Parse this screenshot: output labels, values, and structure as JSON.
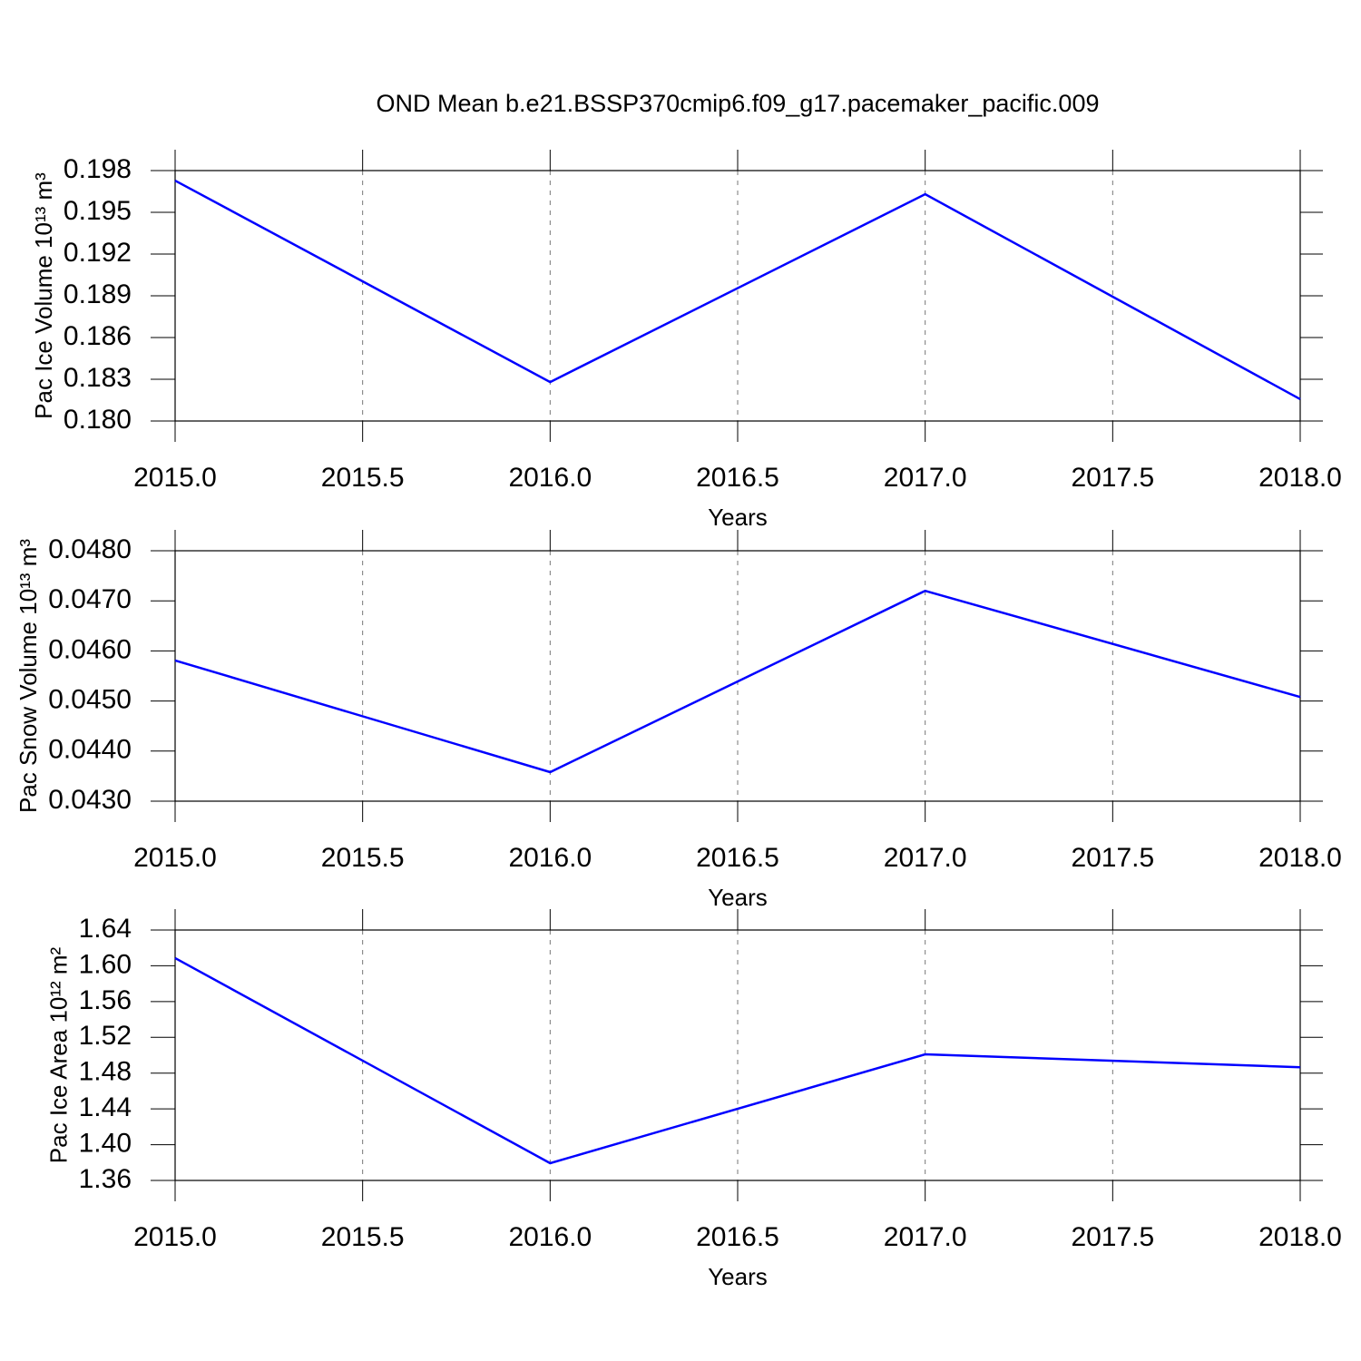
{
  "chart_data": [
    {
      "type": "line",
      "title": "OND Mean b.e21.BSSP370cmip6.f09_g17.pacemaker_pacific.009",
      "x_label": "Years",
      "y_label": "Pac Ice Volume 10¹³ m³",
      "x": [
        2015,
        2016,
        2017,
        2018
      ],
      "series": [
        {
          "color": "#0000ff",
          "values": [
            0.19728,
            0.1828,
            0.1963,
            0.18157
          ]
        }
      ],
      "xlim": [
        2015,
        2018
      ],
      "xticks": [
        {
          "value": 2015,
          "label": "2015.0"
        },
        2015.5,
        {
          "value": 2016,
          "label": "2016.0"
        },
        2016.5,
        {
          "value": 2017,
          "label": "2017.0"
        },
        2017.5,
        {
          "value": 2018,
          "label": "2018.0"
        }
      ],
      "ylim": [
        0.18,
        0.198
      ],
      "yticks": [
        {
          "value": 0.18,
          "label": "0.180"
        },
        0.183,
        0.186,
        0.189,
        0.192,
        0.195,
        0.198
      ],
      "grid": "x"
    },
    {
      "type": "line",
      "x_label": "Years",
      "y_label": "Pac Snow Volume 10¹³ m³",
      "x": [
        2015,
        2016,
        2017,
        2018
      ],
      "series": [
        {
          "color": "#0000ff",
          "values": [
            0.04581,
            0.04358,
            0.0472,
            0.04508
          ]
        }
      ],
      "xlim": [
        2015,
        2018
      ],
      "xticks": [
        {
          "value": 2015,
          "label": "2015.0"
        },
        2015.5,
        {
          "value": 2016,
          "label": "2016.0"
        },
        2016.5,
        {
          "value": 2017,
          "label": "2017.0"
        },
        2017.5,
        {
          "value": 2018,
          "label": "2018.0"
        }
      ],
      "ylim": [
        0.043,
        0.048
      ],
      "yticks": [
        {
          "value": 0.043,
          "label": "0.0430"
        },
        {
          "value": 0.044,
          "label": "0.0440"
        },
        {
          "value": 0.045,
          "label": "0.0450"
        },
        {
          "value": 0.046,
          "label": "0.0460"
        },
        {
          "value": 0.047,
          "label": "0.0470"
        },
        {
          "value": 0.048,
          "label": "0.0480"
        }
      ],
      "grid": "x"
    },
    {
      "type": "line",
      "x_label": "Years",
      "y_label": "Pac Ice Area 10¹² m²",
      "x": [
        2015,
        2016,
        2017,
        2018
      ],
      "series": [
        {
          "color": "#0000ff",
          "values": [
            1.6086,
            1.3793,
            1.501,
            1.4866
          ]
        }
      ],
      "xlim": [
        2015,
        2018
      ],
      "xticks": [
        {
          "value": 2015,
          "label": "2015.0"
        },
        2015.5,
        {
          "value": 2016,
          "label": "2016.0"
        },
        2016.5,
        {
          "value": 2017,
          "label": "2017.0"
        },
        2017.5,
        {
          "value": 2018,
          "label": "2018.0"
        }
      ],
      "ylim": [
        1.36,
        1.64
      ],
      "yticks": [
        1.36,
        {
          "value": 1.4,
          "label": "1.40"
        },
        1.44,
        1.48,
        1.52,
        1.56,
        {
          "value": 1.6,
          "label": "1.60"
        },
        1.64
      ],
      "grid": "x"
    }
  ]
}
